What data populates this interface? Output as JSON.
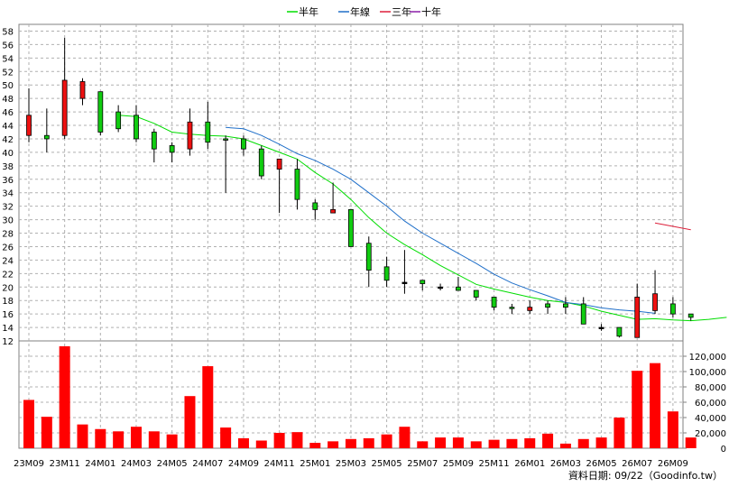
{
  "legend": [
    {
      "label": "半年",
      "color": "#00dd00"
    },
    {
      "label": "年線",
      "color": "#1f6fc9"
    },
    {
      "label": "三年",
      "color": "#dd1f3a"
    },
    {
      "label": "十年",
      "color": "#8a1fa8"
    }
  ],
  "footer": "資料日期: 09/22（Goodinfo.tw）",
  "chart_data": {
    "type": "candlestick",
    "price_axis": {
      "min": 12,
      "max": 59,
      "ticks": [
        12,
        14,
        16,
        18,
        20,
        22,
        24,
        26,
        28,
        30,
        32,
        34,
        36,
        38,
        40,
        42,
        44,
        46,
        48,
        50,
        52,
        54,
        56,
        58
      ]
    },
    "volume_axis": {
      "min": 0,
      "max": 140000,
      "ticks": [
        "0",
        "20,000",
        "40,000",
        "60,000",
        "80,000",
        "100,000",
        "120,000"
      ],
      "tick_values": [
        0,
        20000,
        40000,
        60000,
        80000,
        100000,
        120000
      ]
    },
    "x_tick_labels": [
      "23M09",
      "23M11",
      "24M01",
      "24M03",
      "24M05",
      "24M07",
      "24M09",
      "24M11",
      "25M01",
      "25M03",
      "25M05",
      "25M07",
      "25M09",
      "25M11",
      "26M01",
      "26M03",
      "26M05",
      "26M07",
      "26M09"
    ],
    "candles": [
      {
        "o": 42.5,
        "h": 49.5,
        "l": 41.5,
        "c": 45.5,
        "v": 63000
      },
      {
        "o": 42.5,
        "h": 46.5,
        "l": 40.0,
        "c": 42.0,
        "v": 41000
      },
      {
        "o": 42.5,
        "h": 57.0,
        "l": 42.0,
        "c": 50.7,
        "v": 133000
      },
      {
        "o": 48.0,
        "h": 51.0,
        "l": 47.0,
        "c": 50.5,
        "v": 31000
      },
      {
        "o": 49.0,
        "h": 49.0,
        "l": 42.5,
        "c": 43.0,
        "v": 25000
      },
      {
        "o": 46.0,
        "h": 47.0,
        "l": 43.0,
        "c": 43.5,
        "v": 22000
      },
      {
        "o": 45.5,
        "h": 47.0,
        "l": 41.5,
        "c": 42.0,
        "v": 28000
      },
      {
        "o": 43.0,
        "h": 43.5,
        "l": 38.5,
        "c": 40.5,
        "v": 22000
      },
      {
        "o": 41.0,
        "h": 41.5,
        "l": 38.5,
        "c": 40.0,
        "v": 18000
      },
      {
        "o": 40.5,
        "h": 46.5,
        "l": 39.5,
        "c": 44.5,
        "v": 68000
      },
      {
        "o": 44.5,
        "h": 47.5,
        "l": 40.5,
        "c": 41.5,
        "v": 107000
      },
      {
        "o": 42.0,
        "h": 42.5,
        "l": 34.0,
        "c": 41.8,
        "v": 27000
      },
      {
        "o": 42.0,
        "h": 42.5,
        "l": 39.5,
        "c": 40.5,
        "v": 13000
      },
      {
        "o": 40.5,
        "h": 41.0,
        "l": 36.0,
        "c": 36.5,
        "v": 10000
      },
      {
        "o": 37.5,
        "h": 39.0,
        "l": 31.0,
        "c": 39.0,
        "v": 20000
      },
      {
        "o": 37.5,
        "h": 39.0,
        "l": 31.5,
        "c": 33.0,
        "v": 21000
      },
      {
        "o": 32.5,
        "h": 33.0,
        "l": 30.0,
        "c": 31.5,
        "v": 7000
      },
      {
        "o": 31.0,
        "h": 35.5,
        "l": 31.0,
        "c": 31.5,
        "v": 9000
      },
      {
        "o": 31.5,
        "h": 31.5,
        "l": 26.0,
        "c": 26.0,
        "v": 12000
      },
      {
        "o": 26.5,
        "h": 27.5,
        "l": 20.0,
        "c": 22.5,
        "v": 13000
      },
      {
        "o": 23.0,
        "h": 24.5,
        "l": 20.0,
        "c": 21.0,
        "v": 18000
      },
      {
        "o": 20.7,
        "h": 25.5,
        "l": 19.0,
        "c": 20.7,
        "v": 28000
      },
      {
        "o": 21.0,
        "h": 21.0,
        "l": 19.5,
        "c": 20.5,
        "v": 9000
      },
      {
        "o": 20.0,
        "h": 20.5,
        "l": 19.5,
        "c": 20.0,
        "v": 14000
      },
      {
        "o": 20.0,
        "h": 21.5,
        "l": 19.5,
        "c": 19.5,
        "v": 14000
      },
      {
        "o": 19.5,
        "h": 19.5,
        "l": 18.0,
        "c": 18.5,
        "v": 9000
      },
      {
        "o": 18.5,
        "h": 18.5,
        "l": 16.5,
        "c": 17.0,
        "v": 11000
      },
      {
        "o": 17.0,
        "h": 17.5,
        "l": 16.0,
        "c": 16.8,
        "v": 12000
      },
      {
        "o": 16.5,
        "h": 18.0,
        "l": 16.0,
        "c": 17.0,
        "v": 13000
      },
      {
        "o": 17.5,
        "h": 18.0,
        "l": 16.0,
        "c": 17.0,
        "v": 19000
      },
      {
        "o": 17.5,
        "h": 18.5,
        "l": 16.0,
        "c": 17.0,
        "v": 6000
      },
      {
        "o": 17.5,
        "h": 18.5,
        "l": 14.5,
        "c": 14.5,
        "v": 12000
      },
      {
        "o": 14.0,
        "h": 14.5,
        "l": 13.5,
        "c": 14.0,
        "v": 14000
      },
      {
        "o": 14.0,
        "h": 14.0,
        "l": 12.5,
        "c": 12.7,
        "v": 40000
      },
      {
        "o": 12.5,
        "h": 20.5,
        "l": 12.5,
        "c": 18.5,
        "v": 101000
      },
      {
        "o": 16.5,
        "h": 22.5,
        "l": 16.0,
        "c": 19.0,
        "v": 111000
      },
      {
        "o": 17.5,
        "h": 18.5,
        "l": 15.5,
        "c": 16.0,
        "v": 48000
      },
      {
        "o": 16.0,
        "h": 16.0,
        "l": 15.0,
        "c": 15.5,
        "v": 14000
      }
    ],
    "series": [
      {
        "name": "半年",
        "color": "#00dd00",
        "start_index": 5,
        "values": [
          45.5,
          45.3,
          44.3,
          43.0,
          42.7,
          42.5,
          42.4,
          42.0,
          41.0,
          40.0,
          39.0,
          37.0,
          35.3,
          33.0,
          30.3,
          28.0,
          26.3,
          24.8,
          23.2,
          21.8,
          20.4,
          19.7,
          19.1,
          18.5,
          18.0,
          17.7,
          17.2,
          16.4,
          15.8,
          15.2,
          15.3,
          15.1,
          15.0,
          15.2,
          15.5
        ]
      },
      {
        "name": "年線",
        "color": "#1f6fc9",
        "start_index": 11,
        "values": [
          43.7,
          43.5,
          42.5,
          41.2,
          39.8,
          38.8,
          37.5,
          36.0,
          34.0,
          32.0,
          29.8,
          28.0,
          26.5,
          25.0,
          23.5,
          21.9,
          20.6,
          19.6,
          18.7,
          17.7,
          17.4,
          16.9,
          16.6,
          16.4,
          16.1
        ]
      },
      {
        "name": "三年",
        "color": "#dd1f3a",
        "start_index": 35,
        "values": [
          29.5,
          29.0,
          28.5
        ]
      },
      {
        "name": "十年",
        "color": "#8a1fa8",
        "start_index": 0,
        "values": []
      }
    ]
  }
}
